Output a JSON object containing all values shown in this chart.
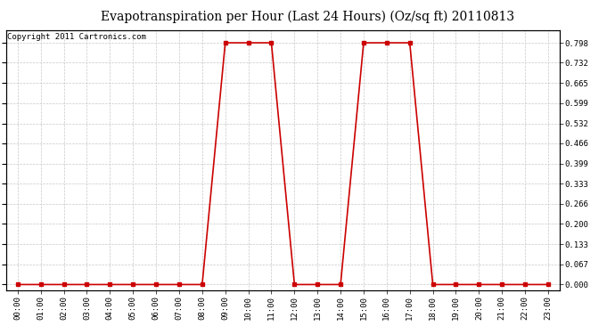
{
  "title": "Evapotranspiration per Hour (Last 24 Hours) (Oz/sq ft) 20110813",
  "copyright": "Copyright 2011 Cartronics.com",
  "line_color": "#cc0000",
  "background_color": "#ffffff",
  "grid_color": "#c8c8c8",
  "x_labels": [
    "00:00",
    "01:00",
    "02:00",
    "03:00",
    "04:00",
    "05:00",
    "06:00",
    "07:00",
    "08:00",
    "09:00",
    "10:00",
    "11:00",
    "12:00",
    "13:00",
    "14:00",
    "15:00",
    "16:00",
    "17:00",
    "18:00",
    "19:00",
    "20:00",
    "21:00",
    "22:00",
    "23:00"
  ],
  "y_values": [
    0.0,
    0.0,
    0.0,
    0.0,
    0.0,
    0.0,
    0.0,
    0.0,
    0.0,
    0.798,
    0.798,
    0.798,
    0.0,
    0.0,
    0.0,
    0.798,
    0.798,
    0.798,
    0.0,
    0.0,
    0.0,
    0.0,
    0.0,
    0.0
  ],
  "yticks": [
    0.0,
    0.067,
    0.133,
    0.2,
    0.266,
    0.333,
    0.399,
    0.466,
    0.532,
    0.599,
    0.665,
    0.732,
    0.798
  ],
  "ylim_min": -0.02,
  "ylim_max": 0.84,
  "marker": "s",
  "marker_size": 2.5,
  "line_width": 1.2,
  "title_fontsize": 10,
  "copyright_fontsize": 6.5,
  "tick_fontsize": 6.5,
  "fig_width": 6.9,
  "fig_height": 3.75,
  "dpi": 100
}
